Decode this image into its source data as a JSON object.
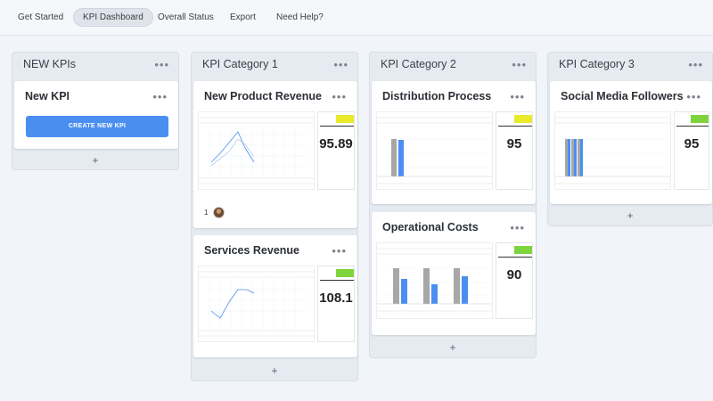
{
  "nav": {
    "items": [
      {
        "label": "Get Started",
        "active": false
      },
      {
        "label": "KPI Dashboard",
        "active": true
      },
      {
        "label": "Overall Status",
        "active": false
      },
      {
        "label": "Export",
        "active": false
      },
      {
        "label": "Need Help?",
        "active": false
      }
    ]
  },
  "board": {
    "more_icon": "more-horizontal-icon",
    "add_label": "+",
    "columns": [
      {
        "title": "NEW KPIs",
        "cards": [
          {
            "title": "New KPI",
            "button_label": "CREATE NEW KPI"
          }
        ]
      },
      {
        "title": "KPI Category 1",
        "cards": [
          {
            "title": "New Product Revenue",
            "value": "95.89",
            "owner_count": "1",
            "chart": "line"
          },
          {
            "title": "Services Revenue",
            "value": "108.1",
            "chart": "line"
          }
        ]
      },
      {
        "title": "KPI Category 2",
        "cards": [
          {
            "title": "Distribution Process",
            "value": "95",
            "chart": "bar"
          },
          {
            "title": "Operational Costs",
            "value": "90",
            "chart": "bar"
          }
        ]
      },
      {
        "title": "KPI Category 3",
        "cards": [
          {
            "title": "Social Media Followers",
            "value": "95",
            "chart": "bar"
          }
        ]
      }
    ]
  },
  "colors": {
    "accent_blue": "#4a8ff0",
    "status_yellow": "#e9ea2b",
    "status_green": "#7fd33c",
    "bar_gray": "#a7a7a7",
    "bar_blue": "#4a8ff0"
  }
}
